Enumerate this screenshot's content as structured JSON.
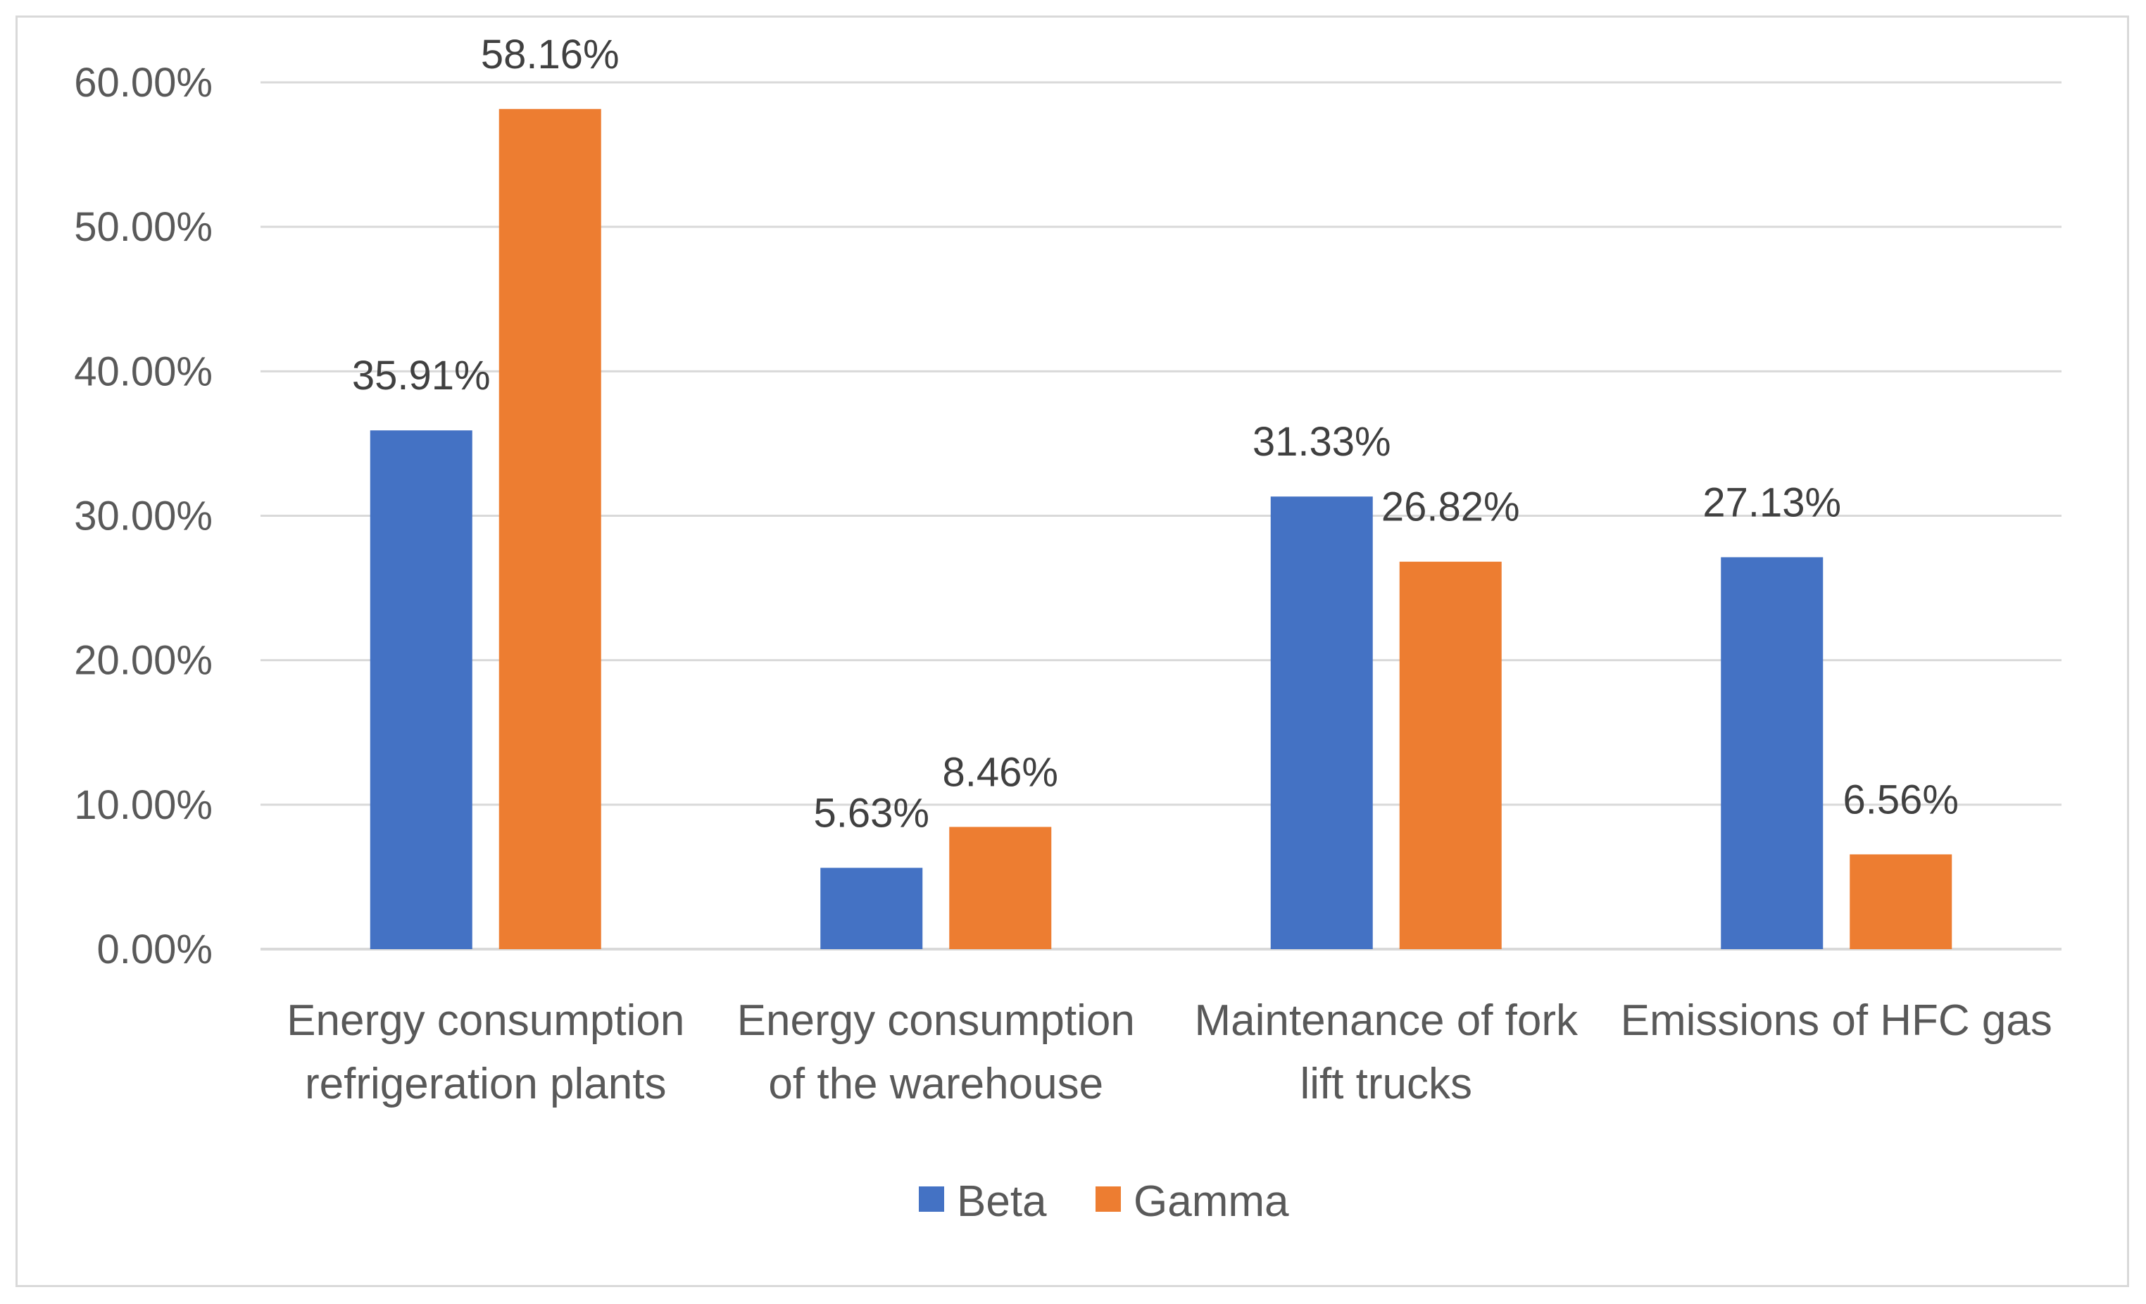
{
  "chart_data": {
    "type": "bar",
    "title": "",
    "xlabel": "",
    "ylabel": "",
    "categories": [
      [
        "Energy consumption",
        "refrigeration plants"
      ],
      [
        "Energy consumption",
        "of the warehouse"
      ],
      [
        "Maintenance of fork",
        "lift trucks"
      ],
      [
        "Emissions of HFC gas"
      ]
    ],
    "series": [
      {
        "name": "Beta",
        "color": "#4472c4",
        "values": [
          35.91,
          5.63,
          31.33,
          27.13
        ],
        "labels": [
          "35.91%",
          "5.63%",
          "31.33%",
          "27.13%"
        ]
      },
      {
        "name": "Gamma",
        "color": "#ed7d31",
        "values": [
          58.16,
          8.46,
          26.82,
          6.56
        ],
        "labels": [
          "58.16%",
          "8.46%",
          "26.82%",
          "6.56%"
        ]
      }
    ],
    "ylim": [
      0,
      60
    ],
    "yticks": [
      0,
      10,
      20,
      30,
      40,
      50,
      60
    ],
    "ytick_labels": [
      "0.00%",
      "10.00%",
      "20.00%",
      "30.00%",
      "40.00%",
      "50.00%",
      "60.00%"
    ],
    "grid": true,
    "legend": "bottom-center"
  }
}
